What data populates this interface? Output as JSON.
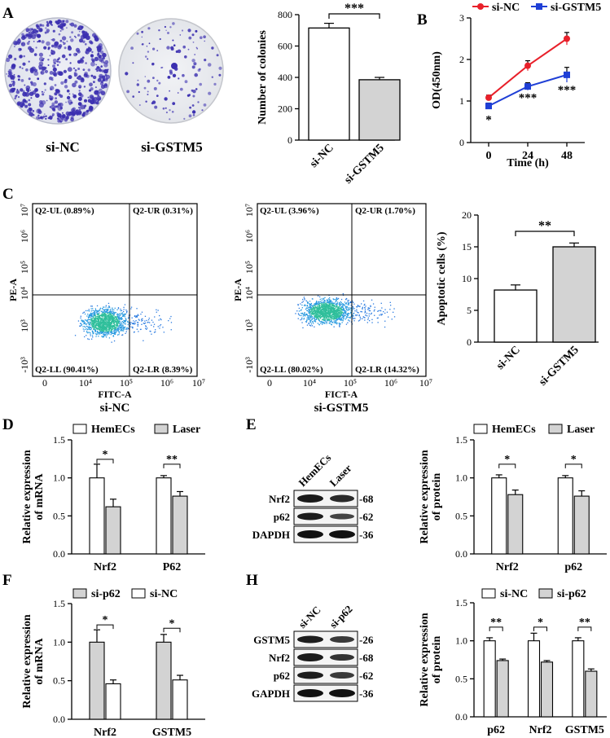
{
  "figure": {
    "panel_labels": [
      "A",
      "B",
      "C",
      "D",
      "E",
      "F",
      "H"
    ]
  },
  "colors": {
    "open_bar": "#ffffff",
    "gray_bar": "#d3d3d3",
    "si_nc_line": "#e8202a",
    "si_gstm5_line": "#1f3fd6",
    "dish_stain": "#3b2fb0",
    "flow_dot": "#2a7be0"
  },
  "panel_a": {
    "dish_labels": [
      "si-NC",
      "si-GSTM5"
    ],
    "plate_icons": [
      "colony-dish-icon",
      "colony-dish-icon"
    ]
  },
  "panel_c": {
    "flow_plots": [
      {
        "caption": "si-NC",
        "xlabel": "FITC-A",
        "ylabel": "PE-A",
        "quadrants": {
          "ul": "Q2-UL (0.89%)",
          "ur": "Q2-UR (0.31%)",
          "ll": "Q2-LL (90.41%)",
          "lr": "Q2-LR (8.39%)"
        },
        "xticks": [
          "0",
          "10⁴",
          "10⁵",
          "10⁶",
          "10⁷"
        ],
        "yticks": [
          "-10³",
          "10³",
          "10⁴",
          "10⁵",
          "10⁶",
          "10⁷"
        ]
      },
      {
        "caption": "si-GSTM5",
        "xlabel": "FICT-A",
        "ylabel": "PE-A",
        "quadrants": {
          "ul": "Q2-UL (3.96%)",
          "ur": "Q2-UR (1.70%)",
          "ll": "Q2-LL (80.02%)",
          "lr": "Q2-LR (14.32%)"
        },
        "xticks": [
          "0",
          "10⁴",
          "10⁵",
          "10⁶",
          "10⁷"
        ],
        "yticks": [
          "-10³",
          "10³",
          "10⁴",
          "10⁵",
          "10⁶",
          "10⁷"
        ]
      }
    ]
  },
  "blots": {
    "E": {
      "lanes": [
        "HemECs",
        "Laser"
      ],
      "rows": [
        {
          "name": "Nrf2",
          "kda": "-68"
        },
        {
          "name": "p62",
          "kda": "-62"
        },
        {
          "name": "DAPDH",
          "kda": "-36"
        }
      ]
    },
    "H": {
      "lanes": [
        "si-NC",
        "si-p62"
      ],
      "rows": [
        {
          "name": "GSTM5",
          "kda": "-26"
        },
        {
          "name": "Nrf2",
          "kda": "-68"
        },
        {
          "name": "p62",
          "kda": "-62"
        },
        {
          "name": "GAPDH",
          "kda": "-36"
        }
      ]
    }
  },
  "chart_data": [
    {
      "id": "A_bar",
      "type": "bar",
      "categories": [
        "si-NC",
        "si-GSTM5"
      ],
      "values": [
        715,
        385
      ],
      "errors": [
        30,
        15
      ],
      "ylabel": "Number of colonies",
      "ylim": [
        0,
        800
      ],
      "yticks": [
        "0",
        "200",
        "400",
        "600",
        "800"
      ],
      "bar_colors": [
        "open",
        "gray"
      ],
      "significance": [
        {
          "pair": [
            0,
            1
          ],
          "label": "***"
        }
      ]
    },
    {
      "id": "B_line",
      "type": "line",
      "x": [
        "0",
        "24",
        "48"
      ],
      "series": [
        {
          "name": "si-NC",
          "values": [
            1.08,
            1.85,
            2.5
          ],
          "errors": [
            0.06,
            0.12,
            0.15
          ]
        },
        {
          "name": "si-GSTM5",
          "values": [
            0.88,
            1.35,
            1.63
          ],
          "errors": [
            0.07,
            0.09,
            0.18
          ]
        }
      ],
      "point_labels": [
        "*",
        "***",
        "***"
      ],
      "xlabel": "Time (h)",
      "ylabel": "OD(450nm)",
      "ylim": [
        0,
        3
      ],
      "yticks": [
        "0",
        "1",
        "2",
        "3"
      ]
    },
    {
      "id": "C_bar",
      "type": "bar",
      "categories": [
        "si-NC",
        "si-GSTM5"
      ],
      "values": [
        8.2,
        15.0
      ],
      "errors": [
        0.8,
        0.6
      ],
      "ylabel": "Apoptotic cells (%)",
      "ylim": [
        0,
        20
      ],
      "yticks": [
        "0",
        "5",
        "10",
        "15",
        "20"
      ],
      "bar_colors": [
        "open",
        "gray"
      ],
      "significance": [
        {
          "pair": [
            0,
            1
          ],
          "label": "**"
        }
      ]
    },
    {
      "id": "D_bar",
      "type": "bar",
      "categories": [
        "Nrf2",
        "P62"
      ],
      "series": [
        {
          "name": "HemECs",
          "values": [
            1.0,
            1.0
          ],
          "errors": [
            0.18,
            0.03
          ]
        },
        {
          "name": "Laser",
          "values": [
            0.62,
            0.76
          ],
          "errors": [
            0.1,
            0.06
          ]
        }
      ],
      "ylabel": "Relative expression of mRNA",
      "ylim": [
        0,
        1.5
      ],
      "yticks": [
        "0.0",
        "0.5",
        "1.0",
        "1.5"
      ],
      "significance": [
        "*",
        "**"
      ]
    },
    {
      "id": "E_bar",
      "type": "bar",
      "categories": [
        "Nrf2",
        "p62"
      ],
      "series": [
        {
          "name": "HemECs",
          "values": [
            1.0,
            1.0
          ],
          "errors": [
            0.04,
            0.03
          ]
        },
        {
          "name": "Laser",
          "values": [
            0.78,
            0.76
          ],
          "errors": [
            0.06,
            0.07
          ]
        }
      ],
      "ylabel": "Relative expression of protein",
      "ylim": [
        0,
        1.5
      ],
      "yticks": [
        "0.0",
        "0.5",
        "1.0",
        "1.5"
      ],
      "significance": [
        "*",
        "*"
      ]
    },
    {
      "id": "F_bar",
      "type": "bar",
      "categories": [
        "Nrf2",
        "GSTM5"
      ],
      "series": [
        {
          "name": "si-p62",
          "values": [
            1.0,
            1.0
          ],
          "errors": [
            0.16,
            0.1
          ]
        },
        {
          "name": "si-NC",
          "values": [
            0.46,
            0.51
          ],
          "errors": [
            0.05,
            0.06
          ]
        }
      ],
      "ylabel": "Relative expression of mRNA",
      "ylim": [
        0,
        1.5
      ],
      "yticks": [
        "0.0",
        "0.5",
        "1.0",
        "1.5"
      ],
      "significance": [
        "*",
        "*"
      ]
    },
    {
      "id": "H_bar",
      "type": "bar",
      "categories": [
        "p62",
        "Nrf2",
        "GSTM5"
      ],
      "series": [
        {
          "name": "si-NC",
          "values": [
            1.0,
            1.0,
            1.0
          ],
          "errors": [
            0.04,
            0.1,
            0.04
          ]
        },
        {
          "name": "si-p62",
          "values": [
            0.74,
            0.72,
            0.6
          ],
          "errors": [
            0.02,
            0.02,
            0.03
          ]
        }
      ],
      "ylabel": "Relative expression of protein",
      "ylim": [
        0,
        1.5
      ],
      "yticks": [
        "0.0",
        "0.5",
        "1.0",
        "1.5"
      ],
      "significance": [
        "**",
        "*",
        "**"
      ]
    }
  ]
}
